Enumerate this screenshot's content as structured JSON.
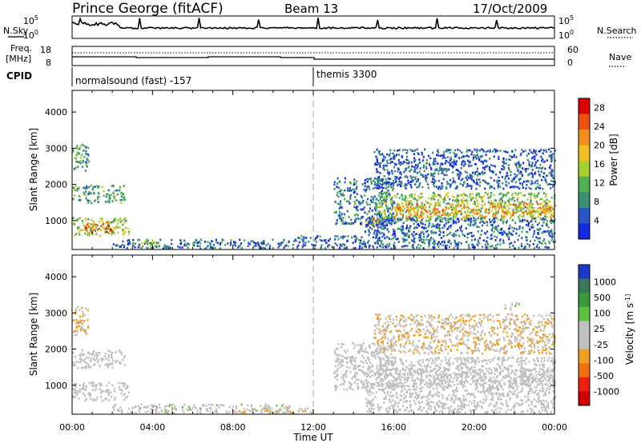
{
  "header": {
    "station": "Prince George (fitACF)",
    "beam": "Beam 13",
    "date": "17/Oct/2009"
  },
  "side_labels": {
    "nsky": "N.Sky",
    "nsearch": "N.Search",
    "freq_line1": "Freq.",
    "freq_line2": "[MHz]",
    "nave": "Nave",
    "cpid": "CPID"
  },
  "noise_axis": {
    "left_ticks": [
      "10^5",
      "10^0"
    ],
    "right_ticks": [
      "10^5",
      "10^0"
    ]
  },
  "freq_axis": {
    "left_ticks": [
      "18",
      "8"
    ],
    "right_ticks": [
      "60",
      "0"
    ]
  },
  "cpid_segments": [
    {
      "label": "normalsound (fast) -157",
      "start_hour": 0
    },
    {
      "label": "themis 3300",
      "start_hour": 12
    }
  ],
  "x_axis": {
    "ticks": [
      "00:00",
      "04:00",
      "08:00",
      "12:00",
      "16:00",
      "20:00",
      "00:00"
    ],
    "label": "Time UT"
  },
  "chart_data": [
    {
      "type": "heatmap",
      "name": "power",
      "ylabel": "Slant Range [km]",
      "yticks": [
        "1000",
        "2000",
        "3000",
        "4000"
      ],
      "xlim": [
        0,
        24
      ],
      "ylim": [
        200,
        4600
      ],
      "colorbar": {
        "label": "Power [dB]",
        "ticks": [
          "4",
          "8",
          "12",
          "16",
          "20",
          "24",
          "28"
        ],
        "range": [
          0,
          30
        ],
        "colors": [
          "#1428e0",
          "#2858c8",
          "#3a9070",
          "#50b050",
          "#a8d030",
          "#f0c020",
          "#f09018",
          "#ee5010",
          "#dd0000"
        ]
      },
      "regions": [
        {
          "t": [
            0.0,
            0.8
          ],
          "r": [
            2400,
            3200
          ],
          "level": 10
        },
        {
          "t": [
            0.0,
            2.6
          ],
          "r": [
            1500,
            2000
          ],
          "level": 10
        },
        {
          "t": [
            0.0,
            2.8
          ],
          "r": [
            600,
            1100
          ],
          "level": 14
        },
        {
          "t": [
            0.6,
            2.0
          ],
          "r": [
            700,
            1000
          ],
          "level": 24
        },
        {
          "t": [
            2.0,
            11.0
          ],
          "r": [
            250,
            500
          ],
          "level": 6
        },
        {
          "t": [
            3.3,
            4.3
          ],
          "r": [
            250,
            500
          ],
          "level": 14
        },
        {
          "t": [
            11.0,
            14.5
          ],
          "r": [
            250,
            600
          ],
          "level": 6
        },
        {
          "t": [
            13.0,
            16.0
          ],
          "r": [
            900,
            2200
          ],
          "level": 7
        },
        {
          "t": [
            14.5,
            15.2
          ],
          "r": [
            850,
            1100
          ],
          "level": 22
        },
        {
          "t": [
            15.2,
            24.0
          ],
          "r": [
            1000,
            1800
          ],
          "level": 13
        },
        {
          "t": [
            16.0,
            24.0
          ],
          "r": [
            1100,
            1500
          ],
          "level": 20
        },
        {
          "t": [
            14.5,
            24.0
          ],
          "r": [
            250,
            1100
          ],
          "level": 6
        },
        {
          "t": [
            15.0,
            24.0
          ],
          "r": [
            1900,
            3000
          ],
          "level": 5
        }
      ]
    },
    {
      "type": "heatmap",
      "name": "velocity",
      "ylabel": "Slant Range [km]",
      "yticks": [
        "1000",
        "2000",
        "3000",
        "4000"
      ],
      "xlim": [
        0,
        24
      ],
      "ylim": [
        200,
        4600
      ],
      "colorbar": {
        "label": "Velocity [m s^-1]",
        "ticks": [
          "1000",
          "500",
          "100",
          "25",
          "-25",
          "-100",
          "-500",
          "-1000"
        ],
        "range": [
          -1200,
          1200
        ],
        "colors": [
          "#1a38c8",
          "#3a7a5a",
          "#3a9a3a",
          "#60c040",
          "#c0c0c0",
          "#c0c0c0",
          "#f0a020",
          "#f07010",
          "#ee2010",
          "#d00000"
        ]
      },
      "regions": [
        {
          "t": [
            0.0,
            0.8
          ],
          "r": [
            2400,
            3200
          ],
          "level": -300
        },
        {
          "t": [
            0.0,
            2.6
          ],
          "r": [
            1500,
            2000
          ],
          "level": 0
        },
        {
          "t": [
            0.0,
            2.8
          ],
          "r": [
            600,
            1100
          ],
          "level": 0
        },
        {
          "t": [
            2.0,
            11.0
          ],
          "r": [
            250,
            500
          ],
          "level": 60
        },
        {
          "t": [
            8.0,
            12.0
          ],
          "r": [
            250,
            400
          ],
          "level": -150
        },
        {
          "t": [
            13.0,
            16.0
          ],
          "r": [
            900,
            2200
          ],
          "level": 0
        },
        {
          "t": [
            15.2,
            24.0
          ],
          "r": [
            1000,
            1800
          ],
          "level": 0
        },
        {
          "t": [
            16.0,
            24.0
          ],
          "r": [
            1100,
            1500
          ],
          "level": 0
        },
        {
          "t": [
            14.5,
            24.0
          ],
          "r": [
            250,
            1100
          ],
          "level": 0
        },
        {
          "t": [
            15.0,
            24.0
          ],
          "r": [
            1900,
            3000
          ],
          "level": -200
        },
        {
          "t": [
            21.5,
            22.2
          ],
          "r": [
            3100,
            3300
          ],
          "level": 150
        }
      ]
    }
  ]
}
